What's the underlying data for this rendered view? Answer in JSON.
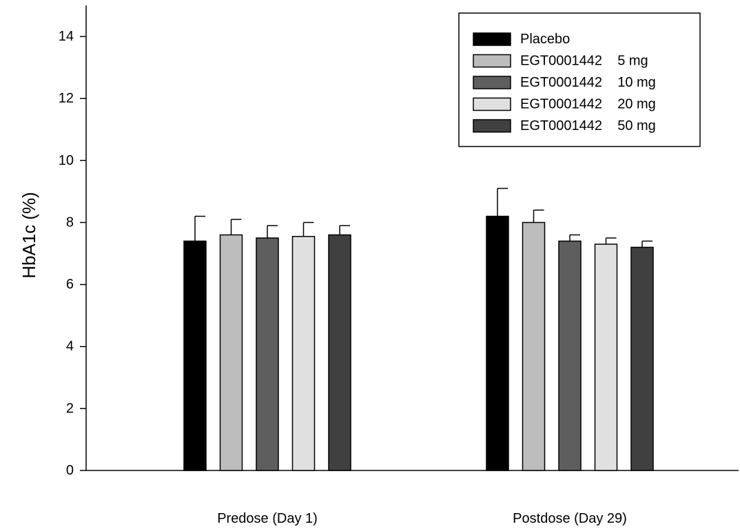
{
  "chart_data": {
    "type": "bar",
    "title": "",
    "xlabel": "",
    "ylabel": "HbA1c (%)",
    "ylim": [
      0,
      15
    ],
    "yticks": [
      0,
      2,
      4,
      6,
      8,
      10,
      12,
      14
    ],
    "ytick_labels": [
      "0",
      "2",
      "4",
      "6",
      "8",
      "10",
      "12",
      "14"
    ],
    "categories": [
      "Predose (Day 1)",
      "Postdose (Day 29)"
    ],
    "legend_position": "top-right",
    "grid": false,
    "series": [
      {
        "name": "Placebo",
        "color": "#000000",
        "values": [
          7.4,
          8.2
        ],
        "error": [
          0.8,
          0.9
        ]
      },
      {
        "name": "EGT0001442    5 mg",
        "color": "#bdbdbd",
        "values": [
          7.6,
          8.0
        ],
        "error": [
          0.5,
          0.4
        ]
      },
      {
        "name": "EGT0001442    10 mg",
        "color": "#5e5e5e",
        "values": [
          7.5,
          7.4
        ],
        "error": [
          0.4,
          0.2
        ]
      },
      {
        "name": "EGT0001442    20 mg",
        "color": "#e0e0e0",
        "values": [
          7.55,
          7.3
        ],
        "error": [
          0.45,
          0.2
        ]
      },
      {
        "name": "EGT0001442    50 mg",
        "color": "#404040",
        "values": [
          7.6,
          7.2
        ],
        "error": [
          0.3,
          0.2
        ]
      }
    ]
  }
}
